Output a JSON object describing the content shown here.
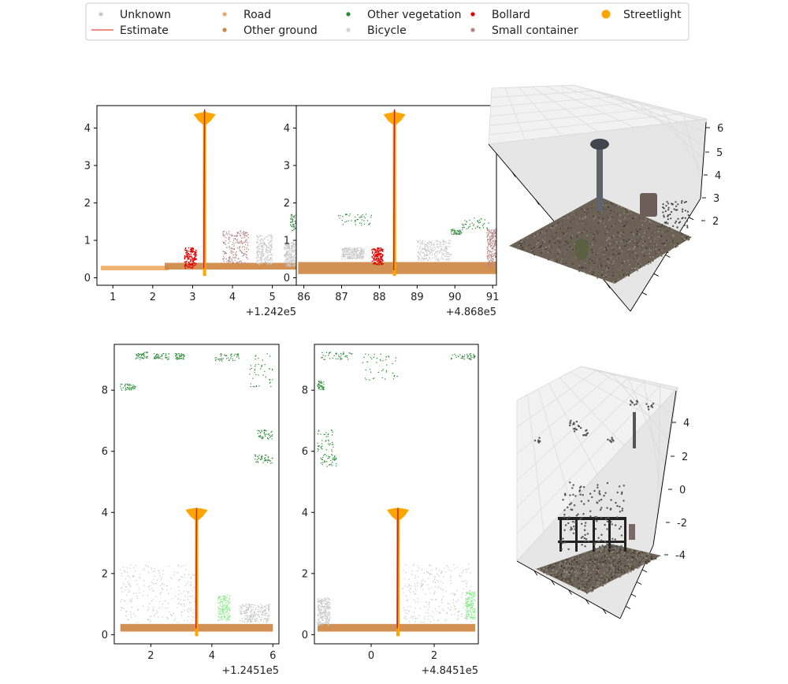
{
  "legend": {
    "columns": [
      [
        {
          "label": "Unknown",
          "marker": "dot-small",
          "color": "#c8c8c8"
        },
        {
          "label": "Estimate",
          "marker": "line",
          "color": "#e8493f"
        }
      ],
      [
        {
          "label": "Road",
          "marker": "dot-small",
          "color": "#f0a860"
        },
        {
          "label": "Other ground",
          "marker": "dot-small",
          "color": "#cd853f"
        }
      ],
      [
        {
          "label": "Other vegetation",
          "marker": "dot-small",
          "color": "#2e8b3a"
        },
        {
          "label": "Bicycle",
          "marker": "dot-small",
          "color": "#d3d3d3"
        }
      ],
      [
        {
          "label": "Bollard",
          "marker": "dot-small",
          "color": "#e00000"
        },
        {
          "label": "Small container",
          "marker": "dot-small",
          "color": "#b48484"
        }
      ],
      [
        {
          "label": "Streetlight",
          "marker": "dot-large",
          "color": "#ffa500"
        }
      ]
    ]
  },
  "colors": {
    "road": "#f0a860",
    "ground": "#cd853f",
    "vegetation": "#2e8b3a",
    "light_vegetation": "#90ee90",
    "bollard": "#e00000",
    "container": "#b48484",
    "unknown": "#c8c8c8",
    "streetlight": "#ffa500",
    "estimate": "#c1272d",
    "pole": "#e05a00"
  },
  "chart_data": [
    {
      "id": "top-left",
      "type": "scatter",
      "xlim": [
        0.6,
        5.6
      ],
      "ylim": [
        -0.2,
        4.6
      ],
      "xticks": [
        1,
        2,
        3,
        4,
        5
      ],
      "yticks": [
        0,
        1,
        2,
        3,
        4
      ],
      "offset_label": "+1.242e5",
      "pole_x": 3.3,
      "pole_top": 4.45,
      "lamp_y": 4.3,
      "estimate_x": [
        3.28,
        3.3
      ],
      "estimate_y": [
        0.25,
        4.5
      ],
      "road": {
        "x": [
          0.7,
          2.4
        ],
        "y": [
          0.2,
          0.32
        ]
      },
      "ground": {
        "x": [
          2.3,
          5.6
        ],
        "y": [
          0.22,
          0.4
        ]
      },
      "bollard": {
        "x": [
          2.8,
          3.1
        ],
        "y": [
          0.25,
          0.8
        ]
      },
      "container": {
        "x": [
          3.75,
          4.4
        ],
        "y": [
          0.38,
          1.25
        ]
      },
      "unknown": [
        {
          "x": [
            4.6,
            5.0
          ],
          "y": [
            0.35,
            1.15
          ]
        },
        {
          "x": [
            5.3,
            5.6
          ],
          "y": [
            0.3,
            0.95
          ]
        }
      ],
      "vegetation": [
        {
          "x": [
            5.45,
            5.6
          ],
          "y": [
            1.25,
            1.7
          ]
        }
      ]
    },
    {
      "id": "top-middle",
      "type": "scatter",
      "xlim": [
        85.8,
        91.1
      ],
      "ylim": [
        -0.2,
        4.6
      ],
      "xticks": [
        86,
        87,
        88,
        89,
        90,
        91
      ],
      "yticks": [
        0,
        1,
        2,
        3,
        4
      ],
      "offset_label": "+4.868e5",
      "pole_x": 88.4,
      "pole_top": 4.45,
      "lamp_y": 4.3,
      "estimate_x": [
        88.38,
        88.4
      ],
      "estimate_y": [
        0.2,
        4.5
      ],
      "ground": {
        "x": [
          85.85,
          91.1
        ],
        "y": [
          0.1,
          0.42
        ]
      },
      "bollard": {
        "x": [
          87.8,
          88.1
        ],
        "y": [
          0.35,
          0.8
        ]
      },
      "container": {
        "x": [
          90.85,
          91.1
        ],
        "y": [
          0.3,
          1.3
        ]
      },
      "unknown": [
        {
          "x": [
            89.0,
            89.9
          ],
          "y": [
            0.45,
            1.0
          ]
        },
        {
          "x": [
            87.0,
            87.6
          ],
          "y": [
            0.5,
            0.8
          ]
        }
      ],
      "vegetation": [
        {
          "x": [
            86.9,
            87.8
          ],
          "y": [
            1.4,
            1.7
          ]
        },
        {
          "x": [
            90.2,
            90.9
          ],
          "y": [
            1.3,
            1.6
          ]
        },
        {
          "x": [
            89.9,
            90.2
          ],
          "y": [
            1.15,
            1.3
          ]
        }
      ]
    },
    {
      "id": "bottom-left",
      "type": "scatter",
      "xlim": [
        0.8,
        6.2
      ],
      "ylim": [
        -0.3,
        9.5
      ],
      "xticks": [
        2,
        4,
        6
      ],
      "yticks": [
        0,
        2,
        4,
        6,
        8
      ],
      "offset_label": "+1.2451e5",
      "pole_x": 3.5,
      "pole_top": 4.1,
      "lamp_y": 4.0,
      "estimate_x": [
        3.48,
        3.5
      ],
      "estimate_y": [
        0.2,
        4.15
      ],
      "ground": {
        "x": [
          1.0,
          6.0
        ],
        "y": [
          0.1,
          0.35
        ]
      },
      "unknown": [
        {
          "x": [
            1.0,
            3.5
          ],
          "y": [
            0.4,
            2.3
          ]
        },
        {
          "x": [
            4.9,
            5.9
          ],
          "y": [
            0.4,
            1.0
          ]
        }
      ],
      "light_vegetation": {
        "x": [
          4.2,
          4.6
        ],
        "y": [
          0.45,
          1.3
        ]
      },
      "vegetation": [
        {
          "x": [
            1.5,
            1.9
          ],
          "y": [
            9.0,
            9.25
          ]
        },
        {
          "x": [
            2.1,
            2.6
          ],
          "y": [
            9.0,
            9.2
          ]
        },
        {
          "x": [
            2.8,
            3.1
          ],
          "y": [
            9.0,
            9.2
          ]
        },
        {
          "x": [
            4.1,
            4.9
          ],
          "y": [
            8.95,
            9.2
          ]
        },
        {
          "x": [
            5.2,
            6.0
          ],
          "y": [
            8.1,
            9.2
          ]
        },
        {
          "x": [
            5.5,
            6.0
          ],
          "y": [
            6.4,
            6.7
          ]
        },
        {
          "x": [
            5.4,
            6.0
          ],
          "y": [
            5.6,
            5.9
          ]
        },
        {
          "x": [
            1.0,
            1.5
          ],
          "y": [
            8.0,
            8.2
          ]
        }
      ]
    },
    {
      "id": "bottom-middle",
      "type": "scatter",
      "xlim": [
        -1.8,
        3.4
      ],
      "ylim": [
        -0.3,
        9.5
      ],
      "xticks": [
        0,
        2
      ],
      "yticks": [
        0,
        2,
        4,
        6,
        8
      ],
      "offset_label": "+4.8451e5",
      "pole_x": 0.85,
      "pole_top": 4.15,
      "lamp_y": 4.0,
      "estimate_x": [
        0.83,
        0.85
      ],
      "estimate_y": [
        0.2,
        4.15
      ],
      "ground": {
        "x": [
          -1.7,
          3.3
        ],
        "y": [
          0.1,
          0.35
        ]
      },
      "unknown": [
        {
          "x": [
            1.0,
            3.2
          ],
          "y": [
            0.4,
            2.3
          ]
        },
        {
          "x": [
            -1.7,
            -1.3
          ],
          "y": [
            0.3,
            1.2
          ]
        }
      ],
      "light_vegetation": {
        "x": [
          3.0,
          3.3
        ],
        "y": [
          0.5,
          1.4
        ]
      },
      "vegetation": [
        {
          "x": [
            -1.6,
            -0.6
          ],
          "y": [
            9.0,
            9.25
          ]
        },
        {
          "x": [
            -0.3,
            0.9
          ],
          "y": [
            8.3,
            9.2
          ]
        },
        {
          "x": [
            2.5,
            3.3
          ],
          "y": [
            9.0,
            9.2
          ]
        },
        {
          "x": [
            -1.7,
            -1.2
          ],
          "y": [
            6.0,
            6.7
          ]
        },
        {
          "x": [
            -1.6,
            -1.1
          ],
          "y": [
            5.5,
            5.9
          ]
        },
        {
          "x": [
            -1.7,
            -1.5
          ],
          "y": [
            8.0,
            8.3
          ]
        }
      ]
    },
    {
      "id": "top-right-3d",
      "type": "scatter",
      "zticks": [
        2,
        3,
        4,
        5,
        6
      ]
    },
    {
      "id": "bottom-right-3d",
      "type": "scatter",
      "zticks": [
        -4,
        -2,
        0,
        2,
        4
      ]
    }
  ]
}
